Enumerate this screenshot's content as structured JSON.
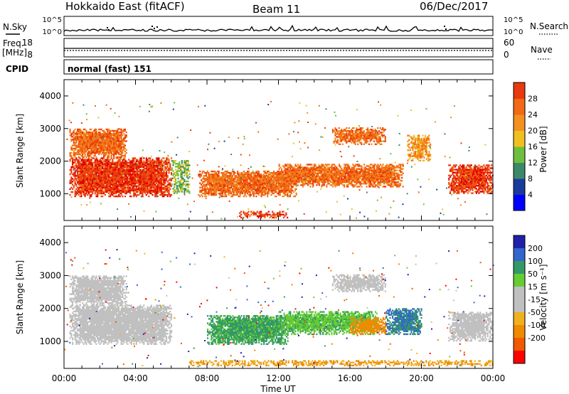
{
  "header": {
    "title": "Hokkaido East (fitACF)",
    "beam": "Beam 11",
    "date": "06/Dec/2017"
  },
  "panels": {
    "nsky": {
      "label": "N.Sky",
      "yticks": [
        "10^5",
        "10^0"
      ],
      "right_label": "N.Search",
      "right_yticks": [
        "10^5",
        "10^0"
      ]
    },
    "freq": {
      "label_line1": "Freq.",
      "label_line2": "[MHz]",
      "yticks": [
        "18",
        "8"
      ],
      "right_label": "Nave",
      "right_yticks": [
        "60",
        "0"
      ]
    },
    "cpid": {
      "label": "CPID",
      "mode": "normal (fast) 151"
    }
  },
  "colors": {
    "power_scale": [
      "#0000ff",
      "#1a3a9e",
      "#3a8a6a",
      "#6fbf3f",
      "#f0c020",
      "#f39020",
      "#f26a15",
      "#e83a0e",
      "#e00000"
    ],
    "velocity_scale": [
      "#ff0000",
      "#f05a00",
      "#f08a00",
      "#f0b020",
      "#c0c0c0",
      "#c0c0c0",
      "#66cc33",
      "#339966",
      "#3366cc",
      "#2020aa"
    ],
    "range_gate_color": "#c0c0c0"
  },
  "chart_data": [
    {
      "type": "heatmap",
      "name": "power",
      "ylabel": "Slant Range [km]",
      "ylim": [
        180,
        4500
      ],
      "yticks": [
        1000,
        2000,
        3000,
        4000
      ],
      "xlim": [
        0,
        24
      ],
      "xticks": [
        "00:00",
        "04:00",
        "08:00",
        "12:00",
        "16:00",
        "20:00",
        "00:00"
      ],
      "colorbar": {
        "label": "Power [dB]",
        "ticks": [
          "4",
          "8",
          "12",
          "16",
          "20",
          "24",
          "28"
        ],
        "range": [
          0,
          32
        ]
      },
      "regions": [
        {
          "t0": 0.3,
          "t1": 6.0,
          "r0": 900,
          "r1": 2100,
          "level": 28
        },
        {
          "t0": 0.3,
          "t1": 3.5,
          "r0": 2100,
          "r1": 3000,
          "level": 24
        },
        {
          "t0": 6.0,
          "t1": 7.0,
          "r0": 1000,
          "r1": 2000,
          "level": 12
        },
        {
          "t0": 7.5,
          "t1": 13.0,
          "r0": 900,
          "r1": 1700,
          "level": 24
        },
        {
          "t0": 9.8,
          "t1": 12.5,
          "r0": 250,
          "r1": 450,
          "level": 28
        },
        {
          "t0": 12.0,
          "t1": 19.0,
          "r0": 1200,
          "r1": 1900,
          "level": 24
        },
        {
          "t0": 15.0,
          "t1": 18.0,
          "r0": 2500,
          "r1": 3000,
          "level": 24
        },
        {
          "t0": 19.2,
          "t1": 20.5,
          "r0": 2000,
          "r1": 2800,
          "level": 20
        },
        {
          "t0": 21.5,
          "t1": 24.0,
          "r0": 1000,
          "r1": 1900,
          "level": 28
        }
      ]
    },
    {
      "type": "heatmap",
      "name": "velocity",
      "ylabel": "Slant Range [km]",
      "xlabel": "Time UT",
      "ylim": [
        180,
        4500
      ],
      "yticks": [
        1000,
        2000,
        3000,
        4000
      ],
      "xlim": [
        0,
        24
      ],
      "xticks": [
        "00:00",
        "04:00",
        "08:00",
        "12:00",
        "16:00",
        "20:00",
        "00:00"
      ],
      "colorbar": {
        "label": "Velocity [m s⁻¹]",
        "ticks": [
          "200",
          "100",
          "50",
          "15",
          "-15",
          "-50",
          "-100",
          "-200"
        ]
      },
      "regions": [
        {
          "t0": 0.3,
          "t1": 6.0,
          "r0": 900,
          "r1": 2100,
          "level": 0
        },
        {
          "t0": 0.3,
          "t1": 3.5,
          "r0": 2100,
          "r1": 3000,
          "level": 0
        },
        {
          "t0": 8.0,
          "t1": 12.5,
          "r0": 900,
          "r1": 1800,
          "level": 40
        },
        {
          "t0": 12.0,
          "t1": 17.5,
          "r0": 1200,
          "r1": 1900,
          "level": 30
        },
        {
          "t0": 16.0,
          "t1": 18.0,
          "r0": 1200,
          "r1": 1700,
          "level": -40
        },
        {
          "t0": 15.0,
          "t1": 18.0,
          "r0": 2500,
          "r1": 3000,
          "level": 0
        },
        {
          "t0": 18.0,
          "t1": 20.0,
          "r0": 1200,
          "r1": 2000,
          "level": 60
        },
        {
          "t0": 21.5,
          "t1": 24.0,
          "r0": 1000,
          "r1": 1900,
          "level": 0
        },
        {
          "t0": 7.0,
          "t1": 24.0,
          "r0": 250,
          "r1": 400,
          "level": -30
        }
      ]
    }
  ],
  "axis": {
    "xlabel": "Time UT"
  }
}
